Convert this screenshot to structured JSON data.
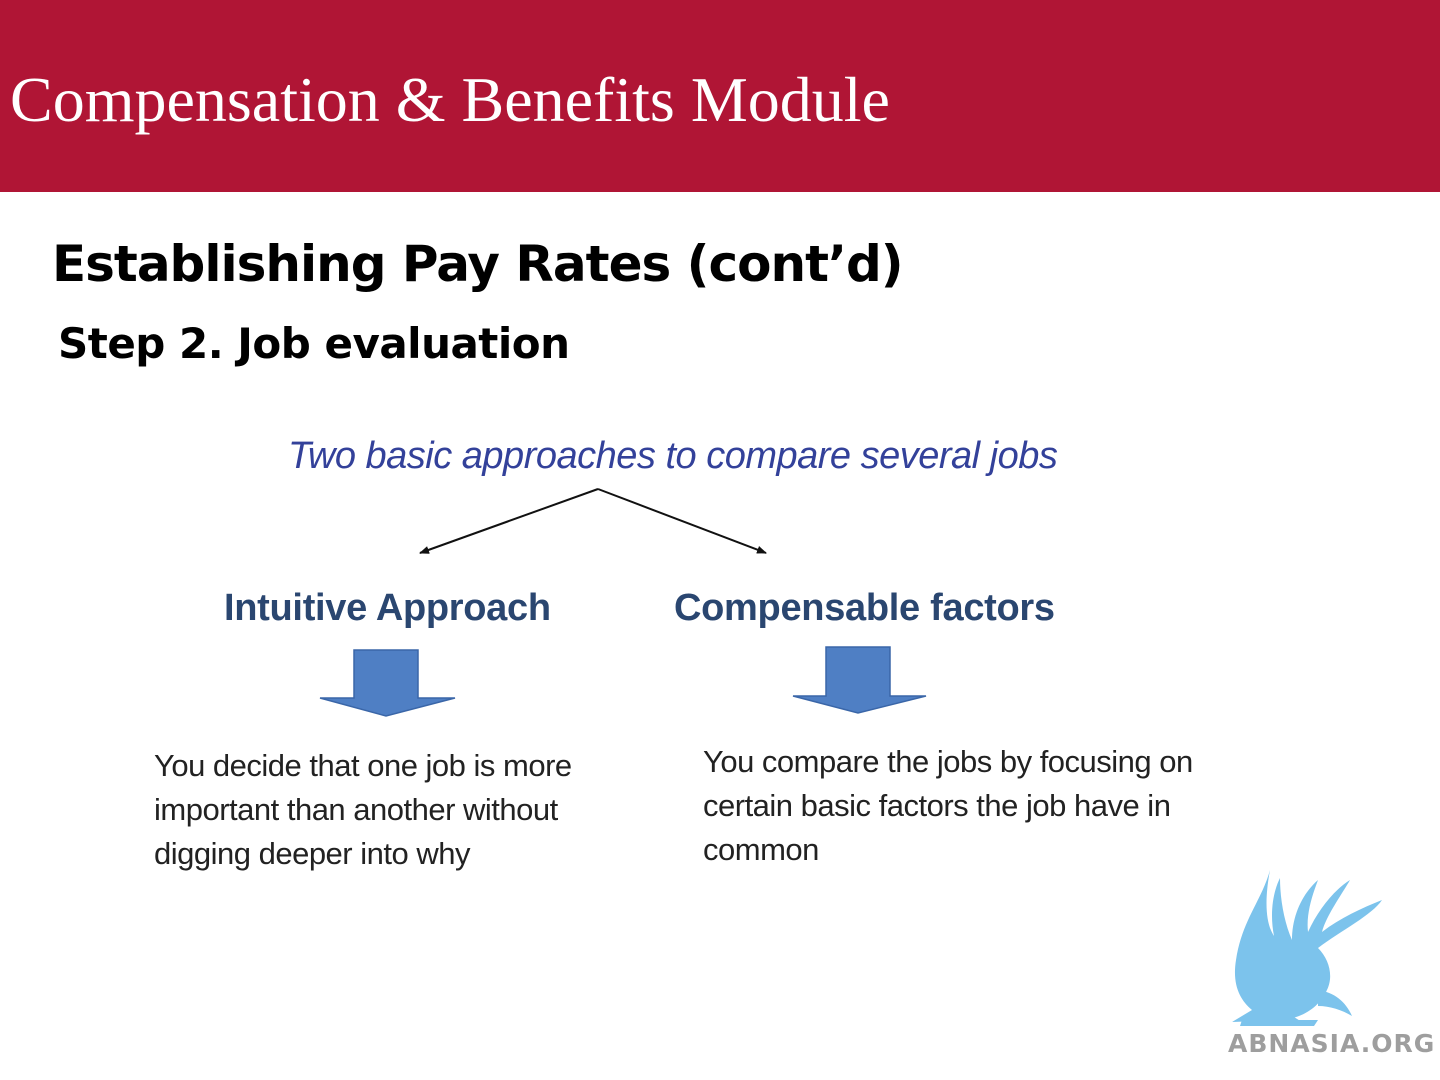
{
  "header": {
    "title": "Compensation & Benefits Module",
    "band_color": "#b01535"
  },
  "slide": {
    "title": "Establishing Pay Rates (cont’d)",
    "subtitle": "Step 2. Job evaluation"
  },
  "diagram": {
    "heading": "Two basic approaches to compare several jobs",
    "branches": [
      {
        "label": "Intuitive Approach",
        "description": "You decide that one job is more important than another without digging deeper into why"
      },
      {
        "label": "Compensable factors",
        "description": "You compare the jobs by focusing on certain basic factors the job have in common"
      }
    ],
    "arrow_color": "#4f7fc4",
    "heading_color": "#33419a",
    "label_color": "#2a4670"
  },
  "logo": {
    "icon": "griffin-logo-icon",
    "text": "ABNASIA.ORG",
    "color": "#7cc3ec"
  }
}
